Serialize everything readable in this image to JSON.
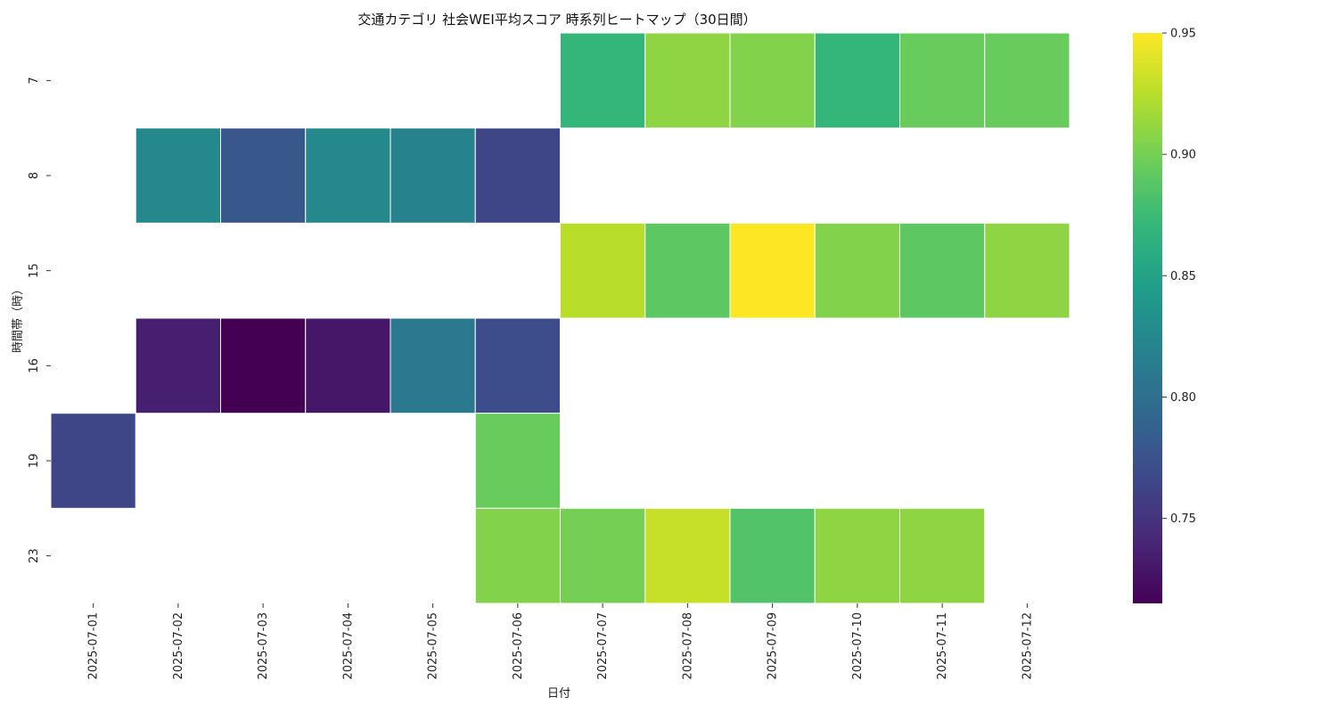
{
  "chart_data": {
    "type": "heatmap",
    "title": "交通カテゴリ 社会WEI平均スコア 時系列ヒートマップ（30日間）",
    "xlabel": "日付",
    "ylabel": "時間帯（時）",
    "x_categories": [
      "2025-07-01",
      "2025-07-02",
      "2025-07-03",
      "2025-07-04",
      "2025-07-05",
      "2025-07-06",
      "2025-07-07",
      "2025-07-08",
      "2025-07-09",
      "2025-07-10",
      "2025-07-11",
      "2025-07-12"
    ],
    "y_categories": [
      "7",
      "8",
      "15",
      "16",
      "19",
      "23"
    ],
    "values": [
      [
        null,
        null,
        null,
        null,
        null,
        null,
        0.87,
        0.91,
        0.905,
        0.87,
        0.895,
        0.895
      ],
      [
        null,
        0.825,
        0.78,
        0.825,
        0.82,
        0.765,
        null,
        null,
        null,
        null,
        null,
        null
      ],
      [
        null,
        null,
        null,
        null,
        null,
        null,
        0.925,
        0.89,
        0.95,
        0.905,
        0.89,
        0.91
      ],
      [
        null,
        0.735,
        0.715,
        0.73,
        0.81,
        0.77,
        null,
        null,
        null,
        null,
        null,
        null
      ],
      [
        0.765,
        null,
        null,
        null,
        null,
        0.895,
        null,
        null,
        null,
        null,
        null,
        null
      ],
      [
        null,
        null,
        null,
        null,
        null,
        0.905,
        0.9,
        0.93,
        0.885,
        0.91,
        0.91,
        null
      ]
    ],
    "colorscale": "viridis",
    "color_range": [
      0.715,
      0.95
    ],
    "colorbar_ticks": [
      "0.75",
      "0.80",
      "0.85",
      "0.90",
      "0.95"
    ],
    "colorbar_tick_values": [
      0.75,
      0.8,
      0.85,
      0.9,
      0.95
    ],
    "grid": false,
    "legend": "colorbar-right"
  }
}
